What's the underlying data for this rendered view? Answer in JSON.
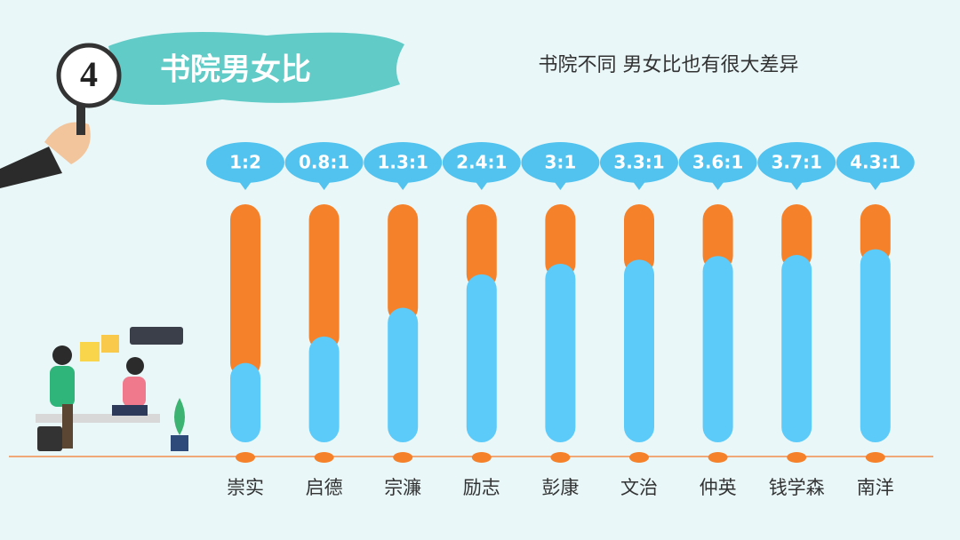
{
  "badge": "4",
  "chart_data": {
    "type": "bar",
    "stacked": true,
    "normalized": true,
    "title": "书院男女比",
    "subtitle": "书院不同 男女比也有很大差异",
    "categories": [
      "崇实",
      "启德",
      "宗濂",
      "励志",
      "彭康",
      "文治",
      "仲英",
      "钱学森",
      "南洋"
    ],
    "series": [
      {
        "color": "#5ccbfa",
        "values": [
          1,
          0.8,
          1.3,
          2.4,
          3,
          3.3,
          3.6,
          3.7,
          4.3
        ],
        "value_labels": [
          "1:2",
          "0.8:1",
          "1.3:1",
          "2.4:1",
          "3:1",
          "3.3:1",
          "3.6:1",
          "3.7:1",
          "4.3:1"
        ]
      },
      {
        "color": "#f5822b",
        "values": [
          2,
          1,
          1,
          1,
          1,
          1,
          1,
          1,
          1
        ]
      }
    ],
    "label_color": "#52c2ee"
  }
}
